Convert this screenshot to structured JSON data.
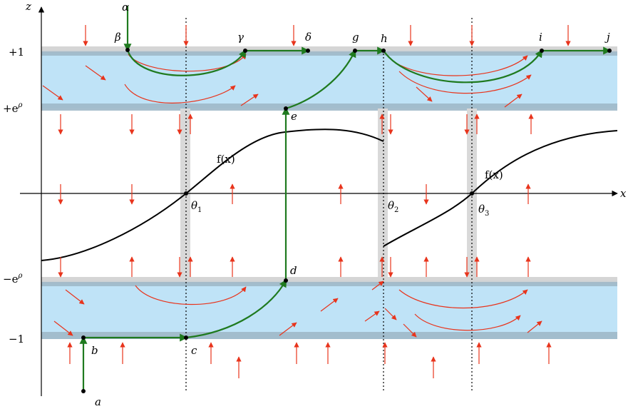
{
  "axes": {
    "x_label": "x",
    "z_label": "z",
    "z_ticks": [
      "+1",
      "+e",
      "−e",
      "−1"
    ],
    "rho_sup": "ρ",
    "theta_labels": [
      {
        "base": "θ",
        "sub": "1"
      },
      {
        "base": "θ",
        "sub": "2"
      },
      {
        "base": "θ",
        "sub": "3"
      }
    ]
  },
  "curve_labels": [
    "f(x)",
    "f(x)"
  ],
  "points": {
    "alpha": "α",
    "beta": "β",
    "gamma": "γ",
    "delta": "δ",
    "g": "g",
    "h": "h",
    "i": "i",
    "j": "j",
    "e": "e",
    "d": "d",
    "a": "a",
    "b": "b",
    "c": "c"
  },
  "colors": {
    "band_fill": "#bfe3f7",
    "band_edge": "#9fb8c8",
    "fuzzy_column": "#d9d9d9",
    "trajectory": "#1f7a1f",
    "field_arrow": "#e8341c",
    "curve": "#000000"
  }
}
